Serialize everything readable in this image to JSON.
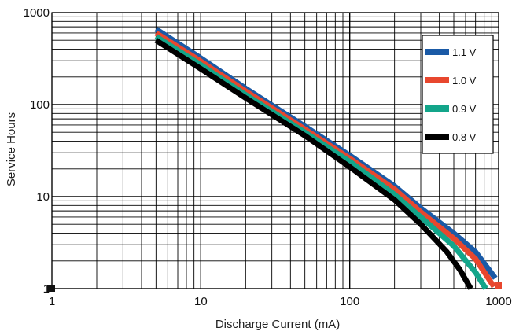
{
  "chart_data": {
    "type": "line",
    "xlabel": "Discharge Current (mA)",
    "ylabel": "Service Hours",
    "xscale": "log",
    "yscale": "log",
    "xlim": [
      1,
      1000
    ],
    "ylim": [
      1,
      1000
    ],
    "grid": true,
    "legend_position": "top-right",
    "x_ticks": [
      {
        "value": 1,
        "label": "1"
      },
      {
        "value": 10,
        "label": "10"
      },
      {
        "value": 100,
        "label": "100"
      },
      {
        "value": 1000,
        "label": "1000"
      }
    ],
    "y_ticks": [
      {
        "value": 1,
        "label": "1"
      },
      {
        "value": 10,
        "label": "10"
      },
      {
        "value": 100,
        "label": "100"
      },
      {
        "value": 1000,
        "label": "1000"
      }
    ],
    "series": [
      {
        "name": "1.1 V",
        "color": "#1a5aa6",
        "points": [
          [
            5,
            660
          ],
          [
            10,
            320
          ],
          [
            20,
            150
          ],
          [
            50,
            58
          ],
          [
            100,
            28
          ],
          [
            200,
            13
          ],
          [
            300,
            7.5
          ],
          [
            500,
            4
          ],
          [
            700,
            2.5
          ],
          [
            950,
            1.3
          ]
        ]
      },
      {
        "name": "1.0 V",
        "color": "#e8472e",
        "points": [
          [
            5,
            600
          ],
          [
            10,
            295
          ],
          [
            20,
            140
          ],
          [
            50,
            54
          ],
          [
            100,
            26
          ],
          [
            200,
            12
          ],
          [
            300,
            6.8
          ],
          [
            500,
            3.5
          ],
          [
            700,
            2.1
          ],
          [
            930,
            1.05
          ]
        ]
      },
      {
        "name": "0.9 V",
        "color": "#13a58a",
        "points": [
          [
            5,
            550
          ],
          [
            10,
            270
          ],
          [
            20,
            128
          ],
          [
            50,
            50
          ],
          [
            100,
            24
          ],
          [
            200,
            10.5
          ],
          [
            300,
            6
          ],
          [
            500,
            2.9
          ],
          [
            700,
            1.5
          ],
          [
            820,
            1.0
          ]
        ]
      },
      {
        "name": "0.8 V",
        "color": "#000000",
        "points": [
          [
            5,
            500
          ],
          [
            10,
            245
          ],
          [
            20,
            118
          ],
          [
            50,
            46
          ],
          [
            100,
            21
          ],
          [
            200,
            9.2
          ],
          [
            300,
            5
          ],
          [
            450,
            2.5
          ],
          [
            550,
            1.6
          ],
          [
            650,
            1.0
          ]
        ]
      }
    ]
  }
}
